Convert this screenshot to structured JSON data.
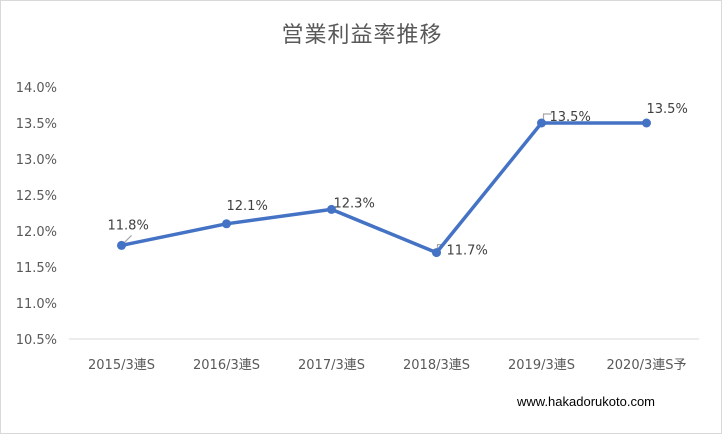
{
  "chart_data": {
    "type": "line",
    "title": "営業利益率推移",
    "categories": [
      "2015/3連S",
      "2016/3連S",
      "2017/3連S",
      "2018/3連S",
      "2019/3連S",
      "2020/3連S予"
    ],
    "series": [
      {
        "values": [
          11.8,
          12.1,
          12.3,
          11.7,
          13.5,
          13.5
        ]
      }
    ],
    "data_labels": [
      "11.8%",
      "12.1%",
      "12.3%",
      "11.7%",
      "13.5%",
      "13.5%"
    ],
    "yticks": [
      "14.0%",
      "13.5%",
      "13.0%",
      "12.5%",
      "12.0%",
      "11.5%",
      "11.0%",
      "10.5%"
    ],
    "ylim": [
      10.5,
      14.0
    ],
    "grid": false,
    "legend": "none",
    "xlabel": "",
    "ylabel": "",
    "colors": {
      "line": "#4472c4",
      "marker": "#4472c4",
      "axis": "#d9d9d9",
      "leader": "#a6a6a6"
    }
  },
  "watermark": "www.hakadorukoto.com"
}
